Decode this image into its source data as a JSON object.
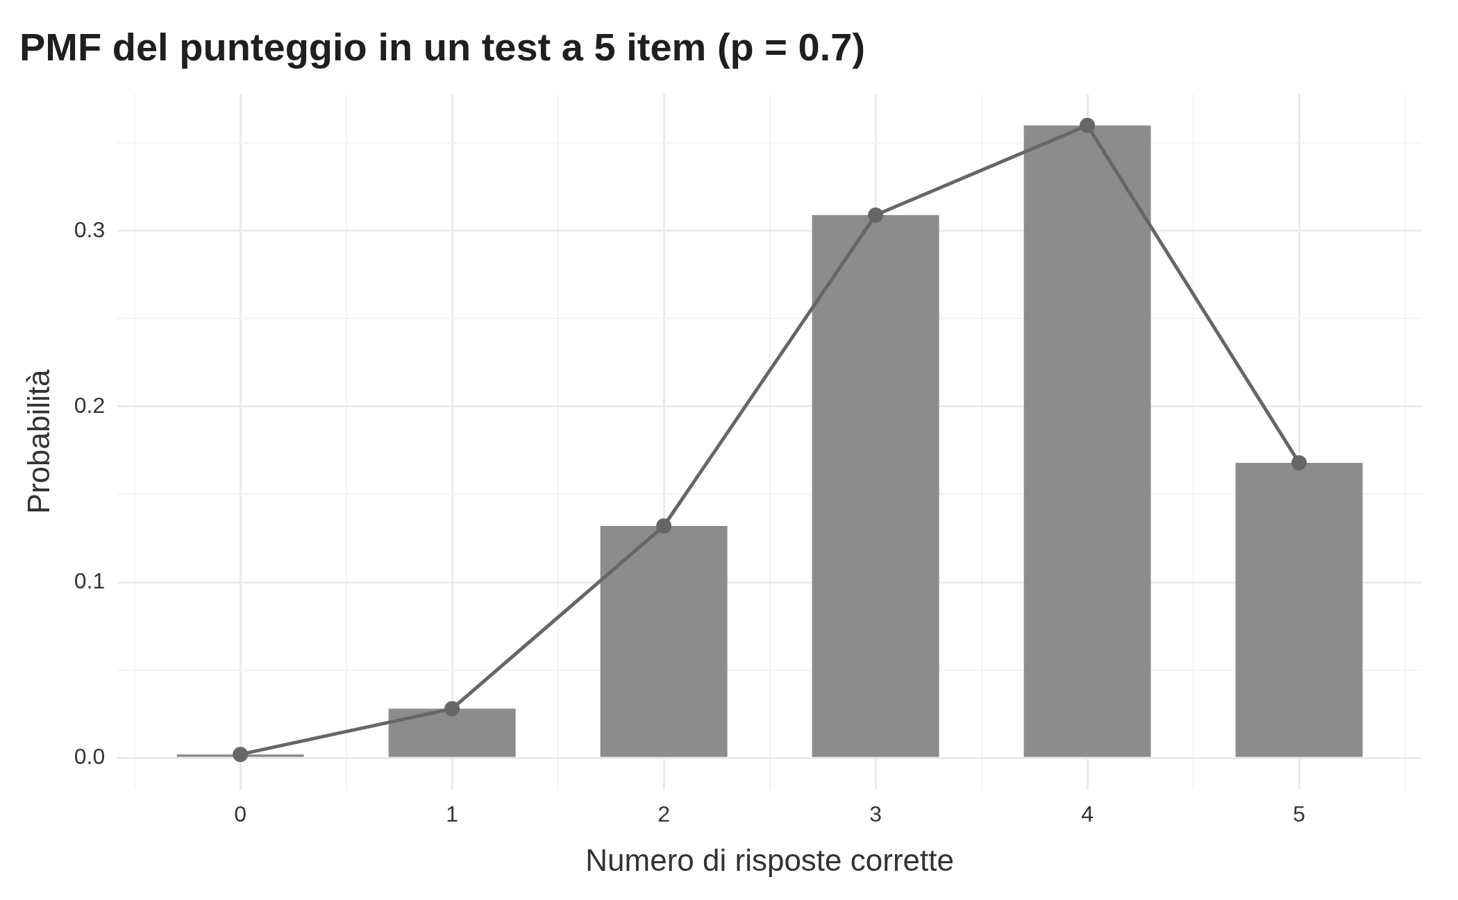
{
  "chart_data": {
    "type": "bar",
    "title": "PMF del punteggio in un test a 5 item (p = 0.7)",
    "xlabel": "Numero di risposte corrette",
    "ylabel": "Probabilità",
    "x": [
      0,
      1,
      2,
      3,
      4,
      5
    ],
    "series": [
      {
        "color": "#8c8c8c",
        "values": [
          0.002,
          0.028,
          0.132,
          0.309,
          0.36,
          0.168
        ]
      },
      {
        "type": "line",
        "color": "#666666",
        "marker": "circle",
        "values": [
          0.002,
          0.028,
          0.132,
          0.309,
          0.36,
          0.168
        ]
      }
    ],
    "xlim": [
      -0.58,
      5.58
    ],
    "xticks": [
      {
        "value": -0.5,
        "label": null
      },
      0,
      {
        "value": 0.5,
        "label": null
      },
      1,
      {
        "value": 1.5,
        "label": null
      },
      2,
      {
        "value": 2.5,
        "label": null
      },
      3,
      {
        "value": 3.5,
        "label": null
      },
      4,
      {
        "value": 4.5,
        "label": null
      },
      5,
      {
        "value": 5.5,
        "label": null
      }
    ],
    "ylim": [
      -0.018,
      0.378
    ],
    "yticks": [
      {
        "value": 0,
        "label": "0.0"
      },
      {
        "value": 0.05,
        "label": null
      },
      0.1,
      {
        "value": 0.15,
        "label": null
      },
      0.2,
      {
        "value": 0.25,
        "label": null
      },
      0.3,
      {
        "value": 0.35,
        "label": null
      }
    ],
    "grid": true,
    "legend": false
  }
}
